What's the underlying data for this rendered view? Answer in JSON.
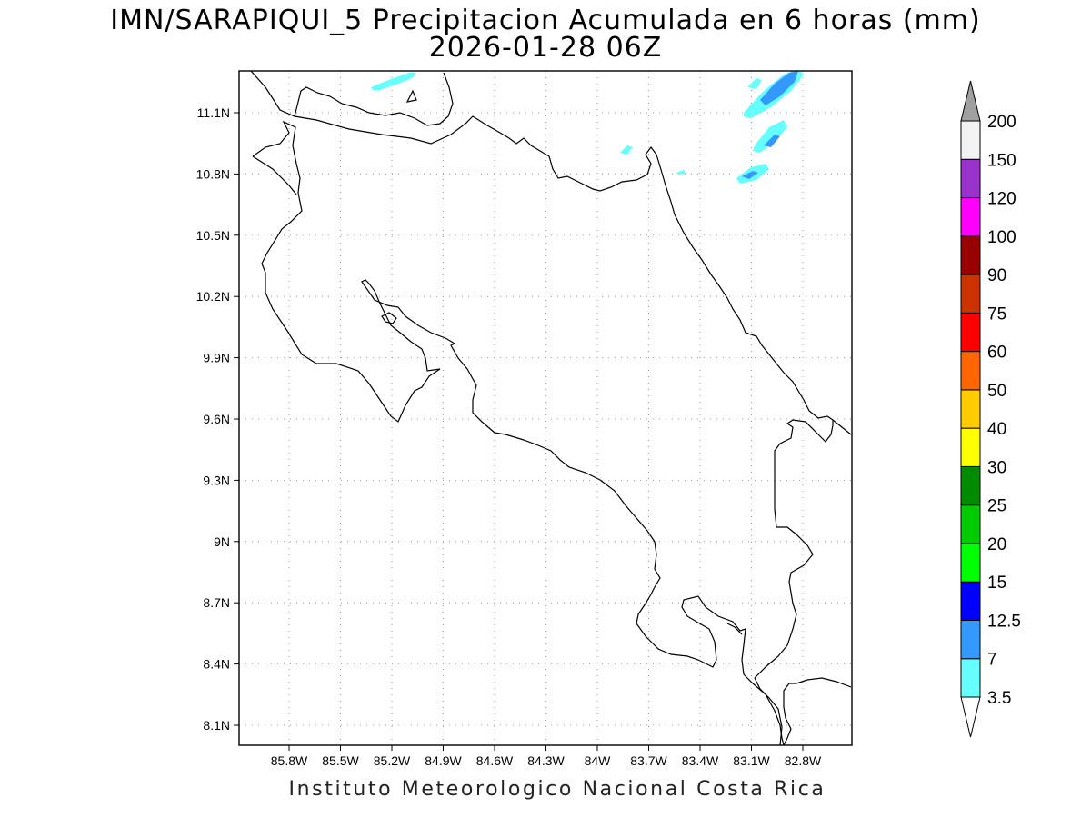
{
  "title": {
    "line1": "IMN/SARAPIQUI_5 Precipitacion Acumulada en 6 horas (mm)",
    "line2": "2026-01-28 06Z"
  },
  "footer": "Instituto Meteorologico Nacional Costa Rica",
  "map": {
    "lon_range": [
      -86.0,
      -82.4
    ],
    "lat_range": [
      8.0,
      11.3
    ],
    "lon_ticks": [
      {
        "value": -85.8,
        "label": "85.8W"
      },
      {
        "value": -85.5,
        "label": "85.5W"
      },
      {
        "value": -85.2,
        "label": "85.2W"
      },
      {
        "value": -84.9,
        "label": "84.9W"
      },
      {
        "value": -84.6,
        "label": "84.6W"
      },
      {
        "value": -84.3,
        "label": "84.3W"
      },
      {
        "value": -84.0,
        "label": "84W"
      },
      {
        "value": -83.7,
        "label": "83.7W"
      },
      {
        "value": -83.4,
        "label": "83.4W"
      },
      {
        "value": -83.1,
        "label": "83.1W"
      },
      {
        "value": -82.8,
        "label": "82.8W"
      }
    ],
    "lat_ticks": [
      {
        "value": 11.1,
        "label": "11.1N"
      },
      {
        "value": 10.8,
        "label": "10.8N"
      },
      {
        "value": 10.5,
        "label": "10.5N"
      },
      {
        "value": 10.2,
        "label": "10.2N"
      },
      {
        "value": 9.9,
        "label": "9.9N"
      },
      {
        "value": 9.6,
        "label": "9.6N"
      },
      {
        "value": 9.3,
        "label": "9.3N"
      },
      {
        "value": 9.0,
        "label": "9N"
      },
      {
        "value": 8.7,
        "label": "8.7N"
      },
      {
        "value": 8.4,
        "label": "8.4N"
      },
      {
        "value": 8.1,
        "label": "8.1N"
      }
    ],
    "grid": "dotted"
  },
  "colorbar": {
    "units": "mm",
    "orientation": "vertical",
    "arrow_top_color": "#a0a0a0",
    "arrow_bottom_color": "#ffffff",
    "segments": [
      {
        "color": "#66ffff",
        "upper": "7"
      },
      {
        "color": "#3399ff",
        "upper": "12.5"
      },
      {
        "color": "#0000ff",
        "upper": "15"
      },
      {
        "color": "#00ff00",
        "upper": "20"
      },
      {
        "color": "#00cc00",
        "upper": "25"
      },
      {
        "color": "#008c00",
        "upper": "30"
      },
      {
        "color": "#ffff00",
        "upper": "40"
      },
      {
        "color": "#ffcc00",
        "upper": "50"
      },
      {
        "color": "#ff6600",
        "upper": "60"
      },
      {
        "color": "#ff0000",
        "upper": "75"
      },
      {
        "color": "#cc3300",
        "upper": "90"
      },
      {
        "color": "#990000",
        "upper": "100"
      },
      {
        "color": "#ff00ff",
        "upper": "120"
      },
      {
        "color": "#9933cc",
        "upper": "150"
      },
      {
        "color": "#f2f2f2",
        "upper": "200"
      }
    ],
    "lowest_label": "3.5"
  },
  "precip_fill_colors": {
    "light": "#66ffff",
    "medium": "#3399ff"
  }
}
